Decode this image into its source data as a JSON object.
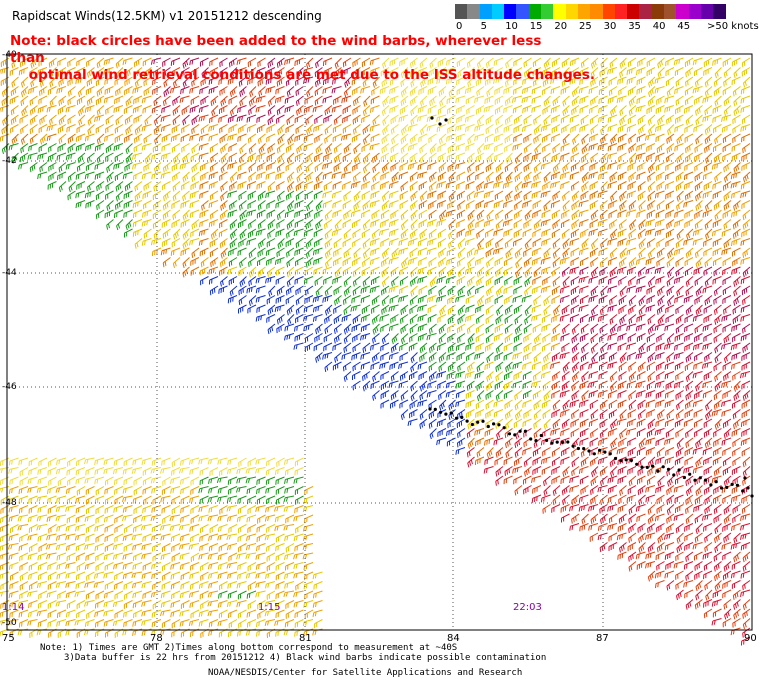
{
  "header": {
    "title": "Rapidscat Winds(12.5KM)  v1  20151212  descending",
    "note_line1": "Note: black circles have been added to the wind barbs, wherever less than",
    "note_line2": "    optimal wind retrieval conditions are met due to the ISS altitude changes."
  },
  "legend": {
    "unit": ">50 knots",
    "ticks": [
      "0",
      "5",
      "10",
      "15",
      "20",
      "25",
      "30",
      "35",
      "40",
      "45"
    ],
    "colors": [
      "#555555",
      "#888888",
      "#00a0ff",
      "#00ccff",
      "#0000ff",
      "#3355ff",
      "#00aa00",
      "#33cc33",
      "#ffff00",
      "#ffd700",
      "#ffa500",
      "#ff8c00",
      "#ff4500",
      "#ff2222",
      "#cc0000",
      "#aa2244",
      "#8b3a0a",
      "#a0522d",
      "#cc00cc",
      "#9900cc",
      "#6600aa",
      "#330066"
    ]
  },
  "map": {
    "lat_labels": [
      "-40",
      "-42",
      "-44",
      "-46",
      "-48",
      "-50"
    ],
    "lon_labels": [
      "75",
      "78",
      "81",
      "84",
      "87",
      "90"
    ],
    "time_labels": [
      "1:14",
      "1:15",
      "22:03"
    ],
    "colors": {
      "yellow": "#e8c800",
      "light_yellow": "#f0dc40",
      "orange": "#f0a000",
      "dark_orange": "#e07000",
      "red_orange": "#e04010",
      "red": "#d81030",
      "crimson": "#b01050",
      "green": "#1a9a1a",
      "blue": "#1030d0",
      "purple": "#8800aa"
    }
  },
  "footer": {
    "line1": "Note: 1) Times are GMT 2)Times along bottom correspond to measurement at ~40S",
    "line2": "3)Data buffer is 22 hrs from 20151212 4) Black wind barbs indicate possible contamination",
    "line3": "NOAA/NESDIS/Center for Satellite Applications and Research"
  }
}
